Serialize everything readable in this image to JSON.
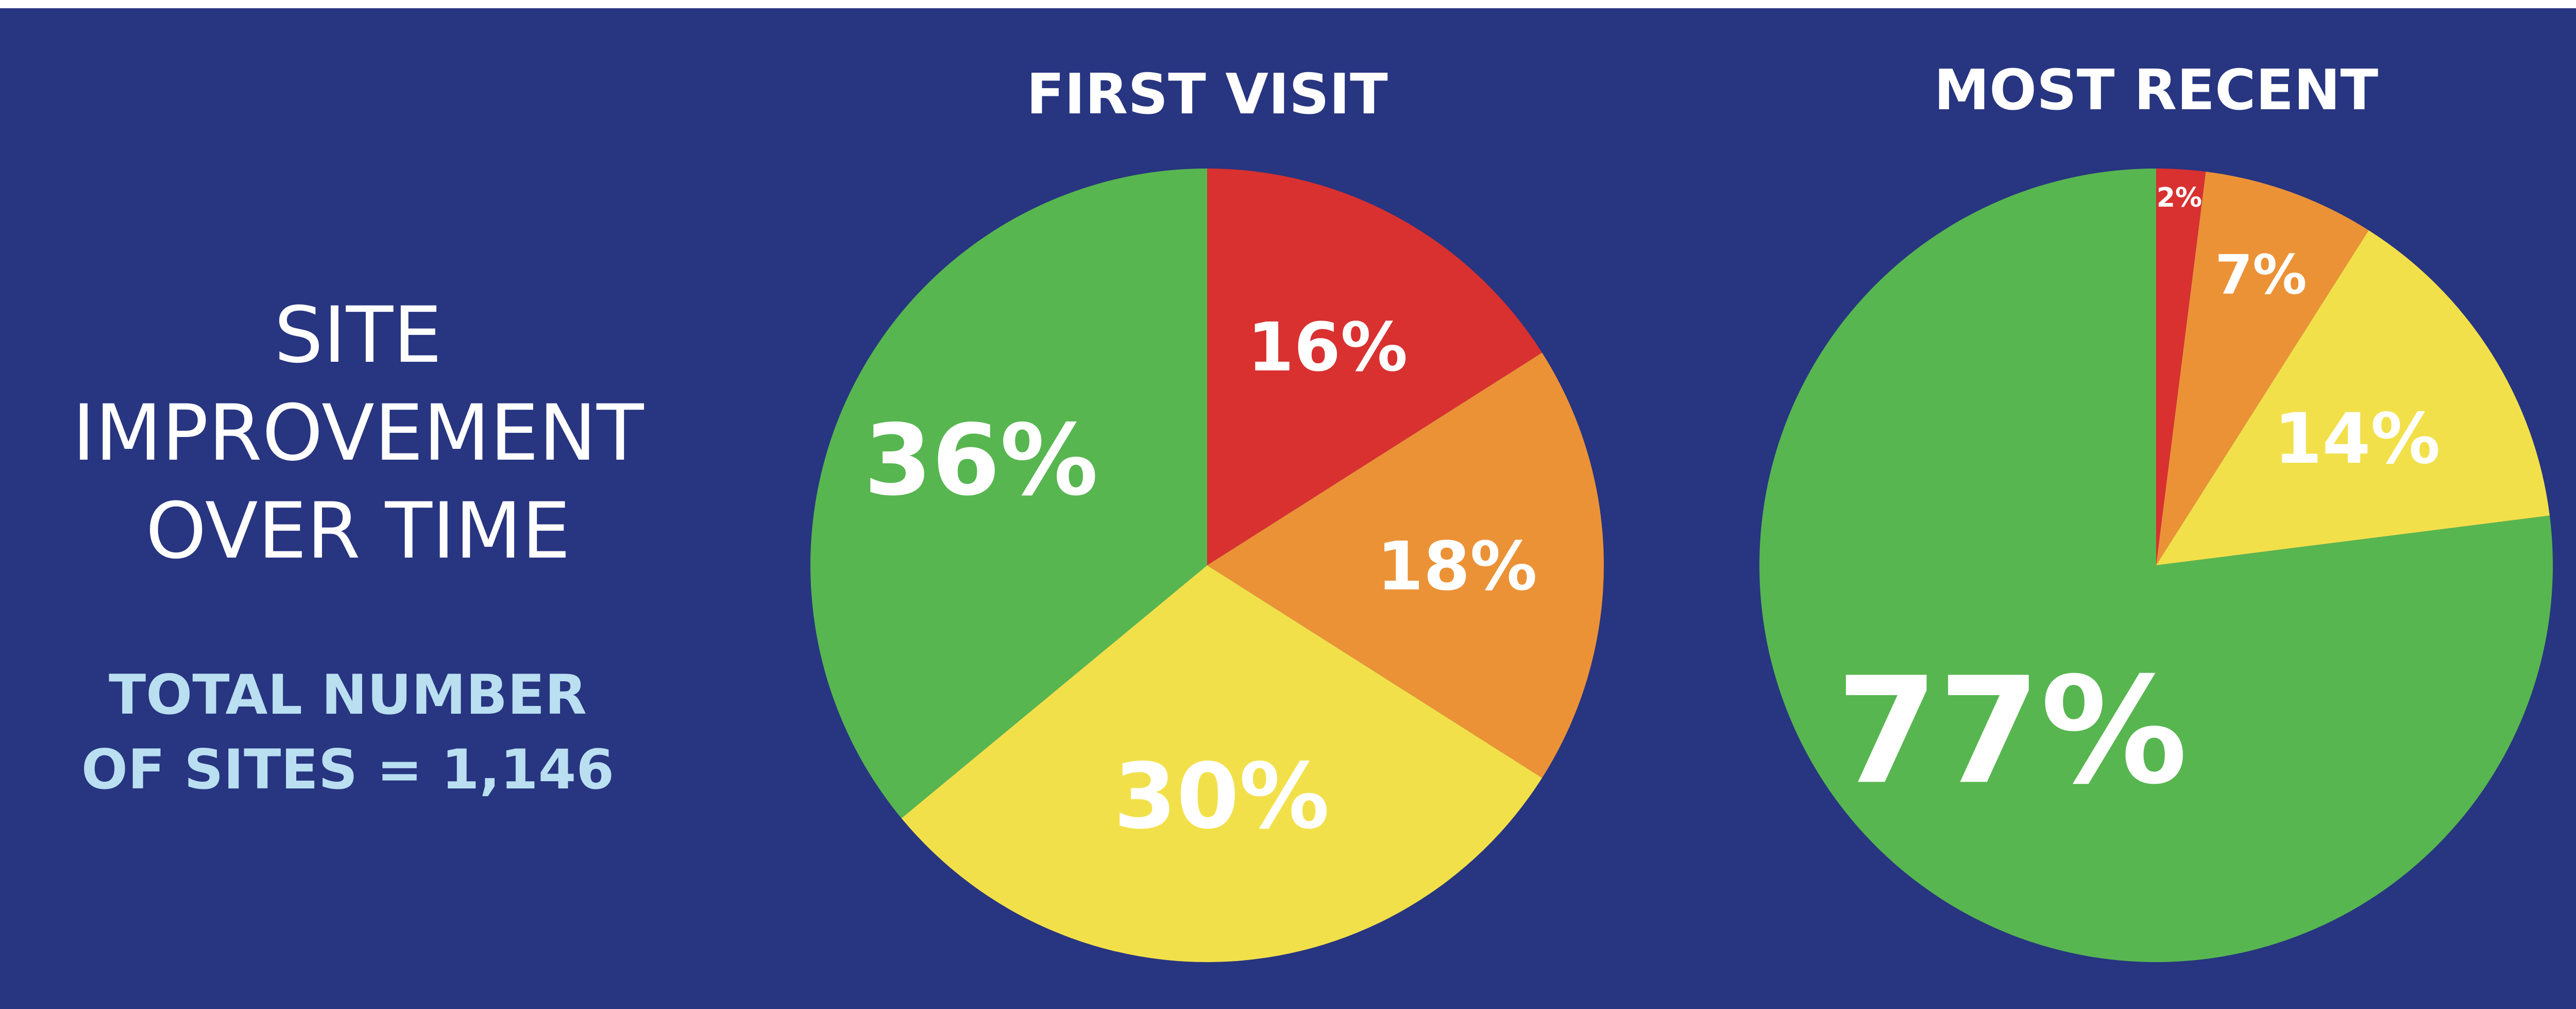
{
  "headline": [
    "SITE",
    "IMPROVEMENT",
    "OVER TIME"
  ],
  "total": [
    "TOTAL NUMBER",
    "OF SITES = 1,146"
  ],
  "colors": {
    "background": "#283580",
    "red": "#d83130",
    "orange": "#eb9237",
    "yellow": "#f2e04a",
    "green": "#57b650",
    "headline_text": "#ffffff",
    "total_text": "#b9dff1"
  },
  "chart_data": [
    {
      "type": "pie",
      "title": "FIRST VISIT",
      "categories": [
        "red",
        "orange",
        "yellow",
        "green"
      ],
      "values": [
        16,
        18,
        30,
        36
      ],
      "labels": [
        "16%",
        "18%",
        "30%",
        "36%"
      ],
      "colors": [
        "#d83130",
        "#eb9237",
        "#f2e04a",
        "#57b650"
      ],
      "start": "12 o'clock",
      "direction": "clockwise"
    },
    {
      "type": "pie",
      "title": "MOST RECENT",
      "categories": [
        "red",
        "orange",
        "yellow",
        "green"
      ],
      "values": [
        2,
        7,
        14,
        77
      ],
      "labels": [
        "2%",
        "7%",
        "14%",
        "77%"
      ],
      "colors": [
        "#d83130",
        "#eb9237",
        "#f2e04a",
        "#57b650"
      ],
      "start": "12 o'clock",
      "direction": "clockwise"
    }
  ]
}
